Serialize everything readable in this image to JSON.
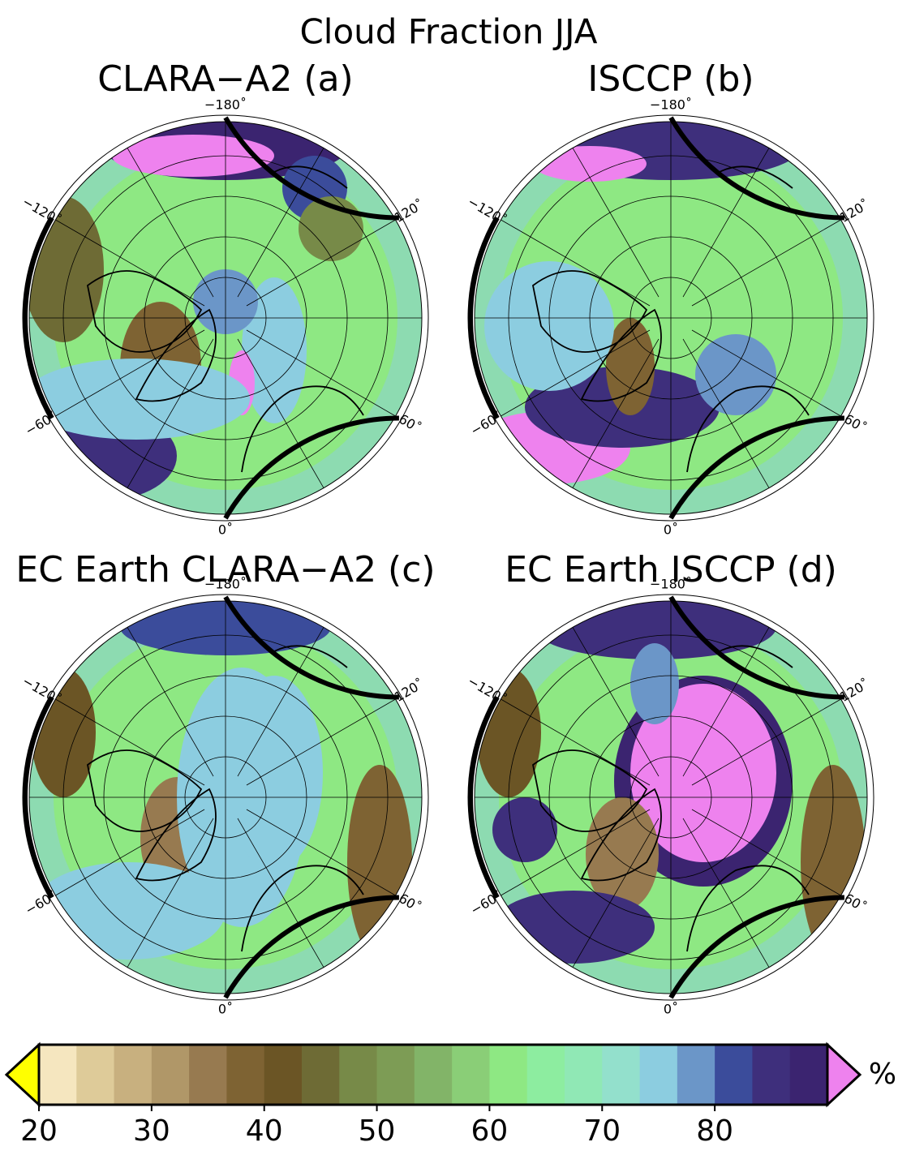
{
  "title": "Cloud Fraction JJA",
  "panels": [
    {
      "title": "CLARA−A2 (a)"
    },
    {
      "title": "ISCCP (b)"
    },
    {
      "title": "EC Earth CLARA−A2 (c)"
    },
    {
      "title": "EC Earth ISCCP (d)"
    }
  ],
  "lon_labels": [
    "−180˚",
    "120˚",
    "60˚",
    "0˚",
    "−60˚",
    "−120˚"
  ],
  "colorbar": {
    "unit": "%",
    "clim": [
      20,
      90
    ],
    "ticks": [
      20,
      30,
      40,
      50,
      60,
      70,
      80
    ],
    "colors": [
      "#f5e6bf",
      "#decb99",
      "#c8b07f",
      "#b09768",
      "#977a50",
      "#7e6333",
      "#6b5525",
      "#6e6b35",
      "#778a48",
      "#7d9c55",
      "#82b468",
      "#8ace77",
      "#8ee883",
      "#8dedA0",
      "#90e8b5",
      "#93e0cc",
      "#8ccde0",
      "#6b96c8",
      "#3b4c9b",
      "#3e2f7c",
      "#3b2470"
    ],
    "under_color": "#ffff00",
    "over_color": "#ee82ee"
  }
}
